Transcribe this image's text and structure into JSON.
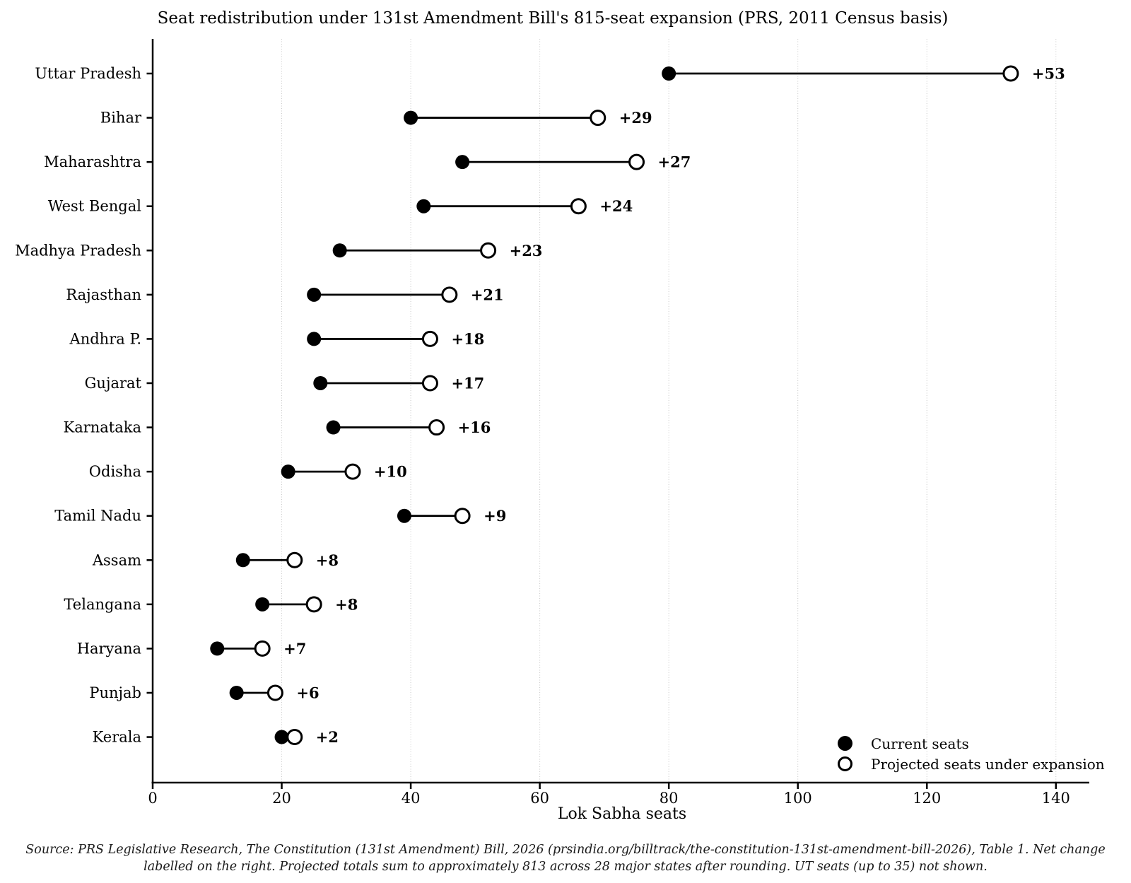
{
  "chart_data": {
    "type": "scatter",
    "variant": "dumbbell",
    "title": "Seat redistribution under 131st Amendment Bill's 815-seat expansion (PRS, 2011 Census basis)",
    "xlabel": "Lok Sabha seats",
    "ylabel": "",
    "xlim": [
      0,
      145
    ],
    "x_ticks": [
      0,
      20,
      40,
      60,
      80,
      100,
      120,
      140
    ],
    "grid": "vertical dotted gridlines at each x tick",
    "legend_position": "lower right, no frame",
    "legend": [
      {
        "marker": "filled-circle",
        "label": "Current seats"
      },
      {
        "marker": "open-circle",
        "label": "Projected seats under expansion"
      }
    ],
    "rows": [
      {
        "state": "Uttar Pradesh",
        "current": 80,
        "projected": 133,
        "delta_label": "+53"
      },
      {
        "state": "Bihar",
        "current": 40,
        "projected": 69,
        "delta_label": "+29"
      },
      {
        "state": "Maharashtra",
        "current": 48,
        "projected": 75,
        "delta_label": "+27"
      },
      {
        "state": "West Bengal",
        "current": 42,
        "projected": 66,
        "delta_label": "+24"
      },
      {
        "state": "Madhya Pradesh",
        "current": 29,
        "projected": 52,
        "delta_label": "+23"
      },
      {
        "state": "Rajasthan",
        "current": 25,
        "projected": 46,
        "delta_label": "+21"
      },
      {
        "state": "Andhra P.",
        "current": 25,
        "projected": 43,
        "delta_label": "+18"
      },
      {
        "state": "Gujarat",
        "current": 26,
        "projected": 43,
        "delta_label": "+17"
      },
      {
        "state": "Karnataka",
        "current": 28,
        "projected": 44,
        "delta_label": "+16"
      },
      {
        "state": "Odisha",
        "current": 21,
        "projected": 31,
        "delta_label": "+10"
      },
      {
        "state": "Tamil Nadu",
        "current": 39,
        "projected": 48,
        "delta_label": "+9"
      },
      {
        "state": "Assam",
        "current": 14,
        "projected": 22,
        "delta_label": "+8"
      },
      {
        "state": "Telangana",
        "current": 17,
        "projected": 25,
        "delta_label": "+8"
      },
      {
        "state": "Haryana",
        "current": 10,
        "projected": 17,
        "delta_label": "+7"
      },
      {
        "state": "Punjab",
        "current": 13,
        "projected": 19,
        "delta_label": "+6"
      },
      {
        "state": "Kerala",
        "current": 20,
        "projected": 22,
        "delta_label": "+2"
      }
    ],
    "colors": {
      "current_dot": "#000000",
      "projected_fill": "#ffffff",
      "projected_edge": "#000000",
      "connector": "#000000",
      "axis": "#000000",
      "grid": "#c9c9c9",
      "background": "#ffffff"
    }
  },
  "footer": {
    "line1": "Source: PRS Legislative Research, The Constitution (131st Amendment) Bill, 2026 (prsindia.org/billtrack/the-constitution-131st-amendment-bill-2026), Table 1. Net change",
    "line2": "labelled on the right. Projected totals sum to approximately 813 across 28 major states after rounding. UT seats (up to 35) not shown."
  }
}
